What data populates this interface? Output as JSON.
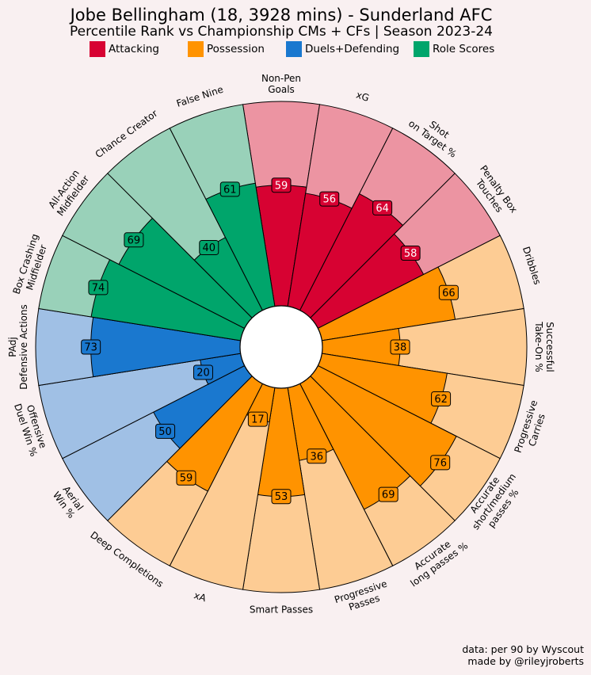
{
  "chart_data": {
    "type": "pizza",
    "title": "Jobe Bellingham (18, 3928 mins) - Sunderland AFC",
    "subtitle": "Percentile Rank vs Championship CMs + CFs | Season 2023-24",
    "legend": [
      {
        "name": "Attacking",
        "color": "#d70232",
        "background": "#ec94a2",
        "label_text": "#ffffff"
      },
      {
        "name": "Possession",
        "color": "#ff9300",
        "background": "#fdcc94",
        "label_text": "#000000"
      },
      {
        "name": "Duels+Defending",
        "color": "#1a78cf",
        "background": "#a0c0e5",
        "label_text": "#000000"
      },
      {
        "name": "Role Scores",
        "color": "#00a56b",
        "background": "#99d1b9",
        "label_text": "#000000"
      }
    ],
    "categories": [
      "Non-Pen\nGoals",
      "xG",
      "Shot\non Target %",
      "Penalty Box\nTouches",
      "Dribbles",
      "Successful\nTake-On %",
      "Progressive\nCarries",
      "Accurate\nshort/medium\npasses %",
      "Accurate\nlong passes %",
      "Progressive\nPasses",
      "Smart Passes",
      "xA",
      "Deep Completions",
      "Aerial\nWin %",
      "Offensive\nDuel Win %",
      "PAdj\nDefensive Actions",
      "Box Crashing\nMidfielder",
      "All-Action\nMidfielder",
      "Chance Creator",
      "False Nine"
    ],
    "values": [
      59,
      56,
      64,
      58,
      66,
      38,
      62,
      76,
      69,
      36,
      53,
      17,
      59,
      50,
      20,
      73,
      74,
      69,
      40,
      61
    ],
    "groups": [
      0,
      0,
      0,
      0,
      1,
      1,
      1,
      1,
      1,
      1,
      1,
      1,
      1,
      2,
      2,
      2,
      3,
      3,
      3,
      3
    ],
    "ylim": [
      0,
      100
    ],
    "footer": "data: per 90 by Wyscout\nmade by @rileyjroberts"
  }
}
